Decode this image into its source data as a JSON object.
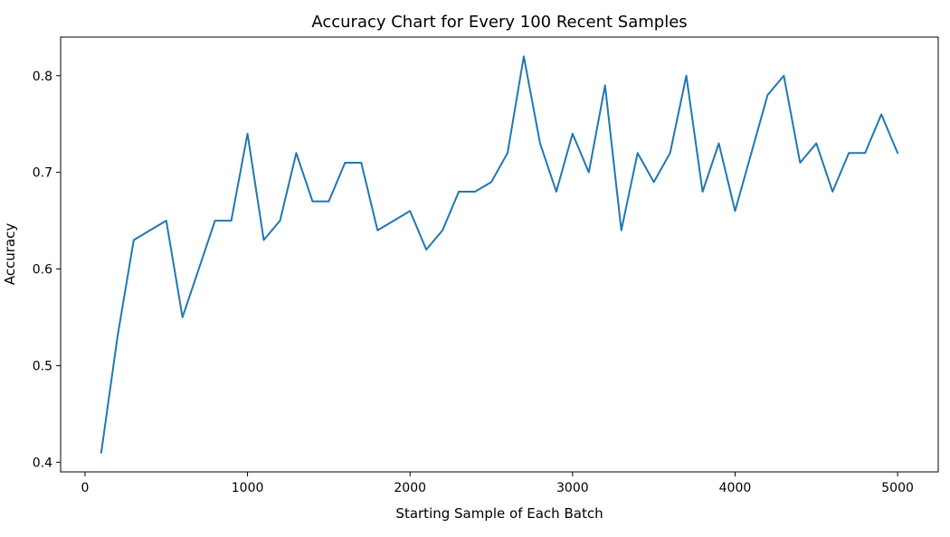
{
  "chart_data": {
    "type": "line",
    "title": "Accuracy Chart for Every 100 Recent Samples",
    "xlabel": "Starting Sample of Each Batch",
    "ylabel": "Accuracy",
    "xlim": [
      -150,
      5250
    ],
    "ylim": [
      0.39,
      0.84
    ],
    "xticks": [
      0,
      1000,
      2000,
      3000,
      4000,
      5000
    ],
    "yticks": [
      0.4,
      0.5,
      0.6,
      0.7,
      0.8
    ],
    "xtick_labels": [
      "0",
      "1000",
      "2000",
      "3000",
      "4000",
      "5000"
    ],
    "ytick_labels": [
      "0.4",
      "0.5",
      "0.6",
      "0.7",
      "0.8"
    ],
    "grid": false,
    "legend": "none",
    "line_color": "#1f77b4",
    "series": [
      {
        "x": [
          100,
          200,
          300,
          400,
          500,
          600,
          700,
          800,
          900,
          1000,
          1100,
          1200,
          1300,
          1400,
          1500,
          1600,
          1700,
          1800,
          1900,
          2000,
          2100,
          2200,
          2300,
          2400,
          2500,
          2600,
          2700,
          2800,
          2900,
          3000,
          3100,
          3200,
          3300,
          3400,
          3500,
          3600,
          3700,
          3800,
          3900,
          4000,
          4100,
          4200,
          4300,
          4400,
          4500,
          4600,
          4700,
          4800,
          4900,
          5000
        ],
        "values": [
          0.41,
          0.53,
          0.63,
          0.64,
          0.65,
          0.55,
          0.6,
          0.65,
          0.65,
          0.74,
          0.63,
          0.65,
          0.72,
          0.67,
          0.67,
          0.71,
          0.71,
          0.64,
          0.65,
          0.66,
          0.62,
          0.64,
          0.68,
          0.68,
          0.69,
          0.72,
          0.82,
          0.73,
          0.68,
          0.74,
          0.7,
          0.79,
          0.64,
          0.72,
          0.69,
          0.72,
          0.8,
          0.68,
          0.73,
          0.66,
          0.72,
          0.78,
          0.8,
          0.71,
          0.73,
          0.68,
          0.72,
          0.72,
          0.76,
          0.72
        ]
      }
    ]
  }
}
